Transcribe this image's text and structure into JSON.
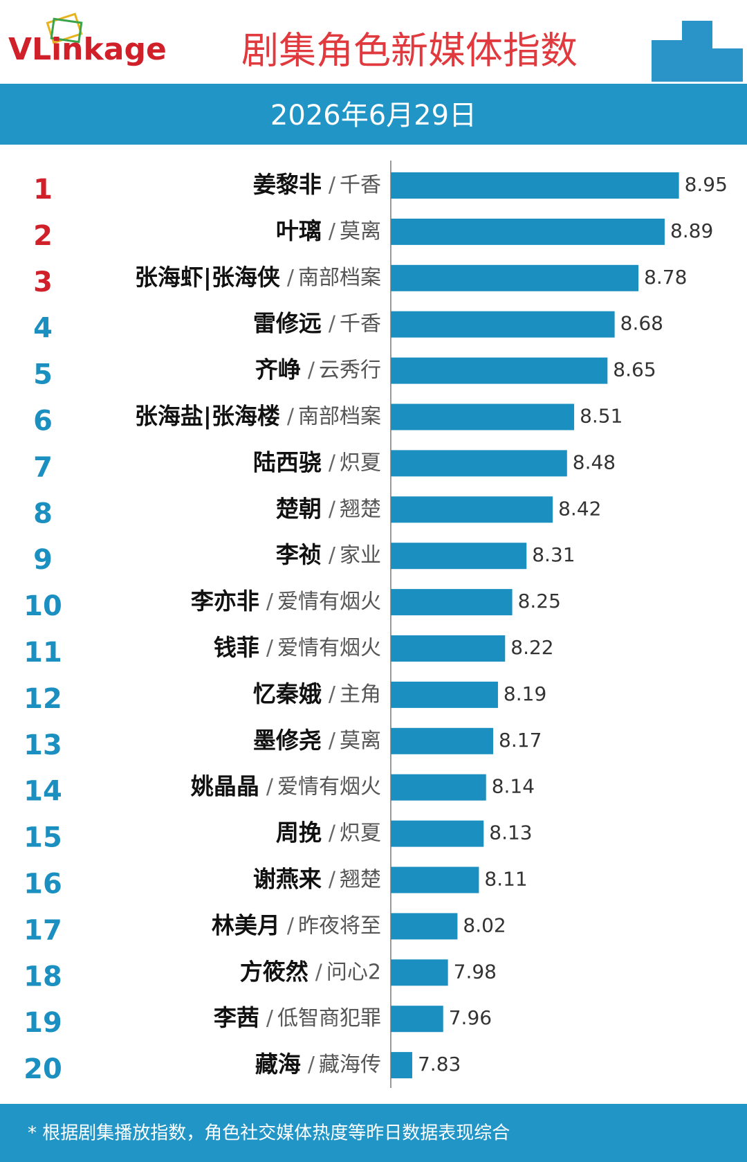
{
  "chart_data": {
    "type": "bar",
    "logo": "VLinkage",
    "title": "剧集角色新媒体指数",
    "subtitle": "2026年6月29日",
    "footnote": "* 根据剧集播放指数，角色社交媒体热度等昨日数据表现综合",
    "ranks": [
      1,
      2,
      3,
      4,
      5,
      6,
      7,
      8,
      9,
      10,
      11,
      12,
      13,
      14,
      15,
      16,
      17,
      18,
      19,
      20
    ],
    "categories": [
      "姜黎非",
      "叶璃",
      "张海虾|张海侠",
      "雷修远",
      "齐峥",
      "张海盐|张海楼",
      "陆西骁",
      "楚朝",
      "李祯",
      "李亦非",
      "钱菲",
      "忆秦娥",
      "墨修尧",
      "姚晶晶",
      "周挽",
      "谢燕来",
      "林美月",
      "方筱然",
      "李茜",
      "藏海"
    ],
    "separator": "/",
    "dramas": [
      "千香",
      "莫离",
      "南部档案",
      "千香",
      "云秀行",
      "南部档案",
      "炽夏",
      "翘楚",
      "家业",
      "爱情有烟火",
      "爱情有烟火",
      "主角",
      "莫离",
      "爱情有烟火",
      "炽夏",
      "翘楚",
      "昨夜将至",
      "问心2",
      "低智商犯罪",
      "藏海传"
    ],
    "values": [
      8.95,
      8.89,
      8.78,
      8.68,
      8.65,
      8.51,
      8.48,
      8.42,
      8.31,
      8.25,
      8.22,
      8.19,
      8.17,
      8.14,
      8.13,
      8.11,
      8.02,
      7.98,
      7.96,
      7.83
    ],
    "xlim": [
      7.74,
      9.23
    ],
    "color": "#1a8fc0",
    "rank_color": "#1a8fc0",
    "top_rank_color": "#d0202a",
    "top_count": 3
  }
}
